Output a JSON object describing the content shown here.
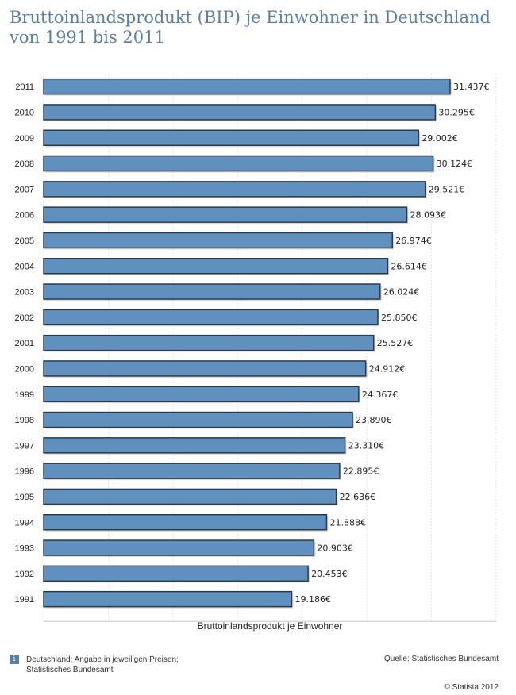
{
  "title": "Bruttoinlandsprodukt (BIP) je Einwohner in Deutschland von 1991 bis 2011",
  "footer": {
    "info_icon": "i",
    "note_line1": "Deutschland; Angabe in jeweiligen Preisen;",
    "note_line2": "Statistisches Bundesamt",
    "source": "Quelle: Statistisches Bundesamt",
    "copyright": "© Statista 2012"
  },
  "colors": {
    "bar_fill": "#6090bd",
    "bar_stroke": "#2b3a48",
    "title": "#5a7fa0",
    "grid": "#e6e6e6"
  },
  "chart_data": {
    "type": "bar",
    "orientation": "horizontal",
    "title": "Bruttoinlandsprodukt (BIP) je Einwohner in Deutschland von 1991 bis 2011",
    "xlabel": "Bruttoinlandsprodukt je Einwohner",
    "ylabel": "",
    "grid": true,
    "xlim": [
      0,
      35000
    ],
    "categories": [
      "2011",
      "2010",
      "2009",
      "2008",
      "2007",
      "2006",
      "2005",
      "2004",
      "2003",
      "2002",
      "2001",
      "2000",
      "1999",
      "1998",
      "1997",
      "1996",
      "1995",
      "1994",
      "1993",
      "1992",
      "1991"
    ],
    "values": [
      31437,
      30295,
      29002,
      30124,
      29521,
      28093,
      26974,
      26614,
      26024,
      25850,
      25527,
      24912,
      24367,
      23890,
      23310,
      22895,
      22636,
      21888,
      20903,
      20453,
      19186
    ],
    "labels": [
      "31.437€",
      "30.295€",
      "29.002€",
      "30.124€",
      "29.521€",
      "28.093€",
      "26.974€",
      "26.614€",
      "26.024€",
      "25.850€",
      "25.527€",
      "24.912€",
      "24.367€",
      "23.890€",
      "23.310€",
      "22.895€",
      "22.636€",
      "21.888€",
      "20.903€",
      "20.453€",
      "19.186€"
    ]
  }
}
